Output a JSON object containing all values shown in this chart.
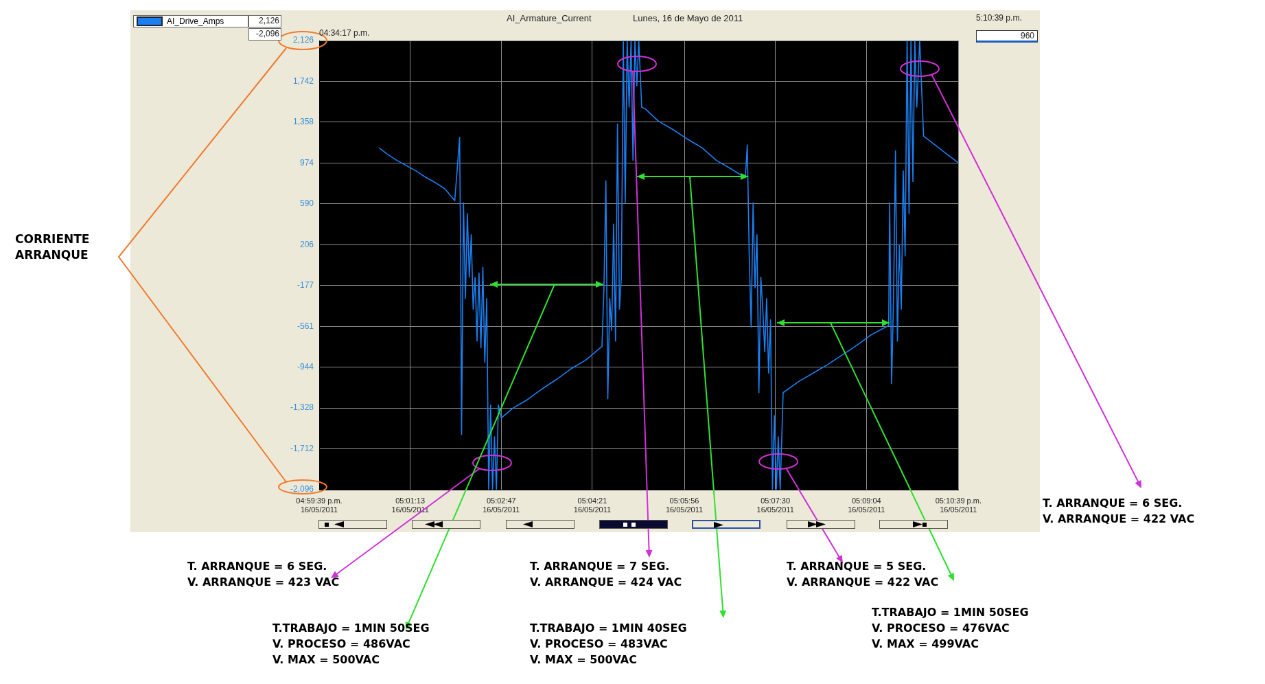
{
  "chart_data": {
    "type": "line",
    "title": "AI_Armature_Current",
    "subtitle": "Lunes, 16 de Mayo de 2011",
    "xlim": [
      "2011-05-16T16:59:39",
      "2011-05-16T17:10:39"
    ],
    "xticks": [
      {
        "value": "2011-05-16T16:59:39",
        "label": "04:59:39 p.m.\n16/05/2011"
      },
      {
        "value": "2011-05-16T17:01:13",
        "label": "05:01:13\n16/05/2011"
      },
      {
        "value": "2011-05-16T17:02:47",
        "label": "05:02:47\n16/05/2011"
      },
      {
        "value": "2011-05-16T17:04:21",
        "label": "05:04:21\n16/05/2011"
      },
      {
        "value": "2011-05-16T17:05:56",
        "label": "05:05:56\n16/05/2011"
      },
      {
        "value": "2011-05-16T17:07:30",
        "label": "05:07:30\n16/05/2011"
      },
      {
        "value": "2011-05-16T17:09:04",
        "label": "05:09:04\n16/05/2011"
      },
      {
        "value": "2011-05-16T17:10:39",
        "label": "05:10:39 p.m.\n16/05/2011"
      }
    ],
    "ylim": [
      -2096,
      2126
    ],
    "yticks": [
      {
        "value": 2126,
        "label": "2,126"
      },
      {
        "value": 1742,
        "label": "1,742"
      },
      {
        "value": 1358,
        "label": "1,358"
      },
      {
        "value": 974,
        "label": "974"
      },
      {
        "value": 590,
        "label": "590"
      },
      {
        "value": 206,
        "label": "206"
      },
      {
        "value": -177,
        "label": "-177"
      },
      {
        "value": -561,
        "label": "-561"
      },
      {
        "value": -944,
        "label": "-944"
      },
      {
        "value": -1328,
        "label": "-1,328"
      },
      {
        "value": -1712,
        "label": "-1,712"
      },
      {
        "value": -2096,
        "label": "-2,096"
      }
    ],
    "grid": true,
    "legend": "top left",
    "marker": "none",
    "line_style": "solid",
    "series": [
      {
        "name": "AI_Drive_Amps",
        "color": "#1a7ff0",
        "x": [
          "2011-05-16T17:00:41",
          "2011-05-16T17:00:49",
          "2011-05-16T17:00:59",
          "2011-05-16T17:01:09",
          "2011-05-16T17:01:19",
          "2011-05-16T17:01:29",
          "2011-05-16T17:01:39",
          "2011-05-16T17:01:49",
          "2011-05-16T17:01:59",
          "2011-05-16T17:02:04",
          "2011-05-16T17:02:05",
          "2011-05-16T17:02:06",
          "2011-05-16T17:02:08",
          "2011-05-16T17:02:10",
          "2011-05-16T17:02:12",
          "2011-05-16T17:02:14",
          "2011-05-16T17:02:16",
          "2011-05-16T17:02:18",
          "2011-05-16T17:02:20",
          "2011-05-16T17:02:22",
          "2011-05-16T17:02:24",
          "2011-05-16T17:02:26",
          "2011-05-16T17:02:28",
          "2011-05-16T17:02:30",
          "2011-05-16T17:02:32",
          "2011-05-16T17:02:34",
          "2011-05-16T17:02:36",
          "2011-05-16T17:02:38",
          "2011-05-16T17:02:40",
          "2011-05-16T17:02:42",
          "2011-05-16T17:02:44",
          "2011-05-16T17:02:47",
          "2011-05-16T17:02:59",
          "2011-05-16T17:03:14",
          "2011-05-16T17:03:29",
          "2011-05-16T17:03:44",
          "2011-05-16T17:03:59",
          "2011-05-16T17:04:14",
          "2011-05-16T17:04:31",
          "2011-05-16T17:04:33",
          "2011-05-16T17:04:35",
          "2011-05-16T17:04:37",
          "2011-05-16T17:04:39",
          "2011-05-16T17:04:41",
          "2011-05-16T17:04:43",
          "2011-05-16T17:04:45",
          "2011-05-16T17:04:47",
          "2011-05-16T17:04:49",
          "2011-05-16T17:04:51",
          "2011-05-16T17:04:53",
          "2011-05-16T17:04:55",
          "2011-05-16T17:04:57",
          "2011-05-16T17:04:59",
          "2011-05-16T17:05:01",
          "2011-05-16T17:05:03",
          "2011-05-16T17:05:05",
          "2011-05-16T17:05:07",
          "2011-05-16T17:05:09",
          "2011-05-16T17:05:12",
          "2011-05-16T17:05:16",
          "2011-05-16T17:05:29",
          "2011-05-16T17:05:44",
          "2011-05-16T17:05:59",
          "2011-05-16T17:06:14",
          "2011-05-16T17:06:29",
          "2011-05-16T17:06:44",
          "2011-05-16T17:06:59",
          "2011-05-16T17:07:01",
          "2011-05-16T17:07:03",
          "2011-05-16T17:07:05",
          "2011-05-16T17:07:07",
          "2011-05-16T17:07:09",
          "2011-05-16T17:07:11",
          "2011-05-16T17:07:13",
          "2011-05-16T17:07:15",
          "2011-05-16T17:07:17",
          "2011-05-16T17:07:19",
          "2011-05-16T17:07:21",
          "2011-05-16T17:07:23",
          "2011-05-16T17:07:25",
          "2011-05-16T17:07:27",
          "2011-05-16T17:07:29",
          "2011-05-16T17:07:31",
          "2011-05-16T17:07:33",
          "2011-05-16T17:07:35",
          "2011-05-16T17:07:38",
          "2011-05-16T17:07:54",
          "2011-05-16T17:08:09",
          "2011-05-16T17:08:24",
          "2011-05-16T17:08:39",
          "2011-05-16T17:08:54",
          "2011-05-16T17:09:09",
          "2011-05-16T17:09:27",
          "2011-05-16T17:09:28",
          "2011-05-16T17:09:30",
          "2011-05-16T17:09:32",
          "2011-05-16T17:09:34",
          "2011-05-16T17:09:36",
          "2011-05-16T17:09:38",
          "2011-05-16T17:09:40",
          "2011-05-16T17:09:42",
          "2011-05-16T17:09:44",
          "2011-05-16T17:09:46",
          "2011-05-16T17:09:48",
          "2011-05-16T17:09:50",
          "2011-05-16T17:09:52",
          "2011-05-16T17:09:54",
          "2011-05-16T17:09:56",
          "2011-05-16T17:09:59",
          "2011-05-16T17:10:03",
          "2011-05-16T17:10:14",
          "2011-05-16T17:10:24",
          "2011-05-16T17:10:34",
          "2011-05-16T17:10:39"
        ],
        "values": [
          1116,
          1060,
          1000,
          950,
          900,
          840,
          790,
          730,
          620,
          1214,
          200,
          -1577,
          600,
          -300,
          500,
          -100,
          300,
          -400,
          -100,
          -700,
          -60,
          -763,
          -6,
          -900,
          -300,
          -2096,
          -1300,
          -2096,
          -1600,
          -2096,
          -1300,
          -1422,
          -1330,
          -1250,
          -1150,
          -1060,
          -960,
          -880,
          -749,
          -200,
          807,
          -1240,
          -300,
          -600,
          400,
          -700,
          1341,
          -400,
          -100,
          2126,
          600,
          2126,
          1500,
          2126,
          1000,
          2126,
          1700,
          2126,
          1500,
          1481,
          1370,
          1290,
          1200,
          1120,
          1000,
          920,
          836,
          1144,
          100,
          -567,
          600,
          -200,
          300,
          -1184,
          -100,
          -400,
          -800,
          -300,
          -1000,
          -500,
          -2096,
          -1400,
          -2096,
          -1600,
          -2096,
          -1184,
          -1080,
          -1000,
          -920,
          -830,
          -740,
          -640,
          -553,
          600,
          -1100,
          -300,
          1088,
          -700,
          200,
          -400,
          900,
          100,
          2126,
          500,
          2126,
          800,
          2126,
          1500,
          2126,
          1228,
          1150,
          1080,
          1010,
          976
        ]
      }
    ],
    "annotations": [
      "04:34:17 p.m.",
      "5:10:39 p.m.",
      "960",
      "2,126",
      "-2,096",
      "CORRIENTE\nARRANQUE",
      "T. ARRANQUE = 6 SEG.\nV. ARRANQUE = 423 VAC",
      "T. ARRANQUE = 7 SEG.\nV. ARRANQUE = 424 VAC",
      "T. ARRANQUE = 5 SEG.\nV. ARRANQUE = 422 VAC",
      "T. ARRANQUE = 6 SEG.\nV. ARRANQUE = 422 VAC",
      "T.TRABAJO = 1MIN 50SEG\nV. PROCESO = 486VAC\nV. MAX = 500VAC",
      "T.TRABAJO = 1MIN 40SEG\nV. PROCESO = 483VAC\nV. MAX = 500VAC",
      "T.TRABAJO = 1MIN 50SEG\nV. PROCESO = 476VAC\nV. MAX = 499VAC"
    ]
  }
}
